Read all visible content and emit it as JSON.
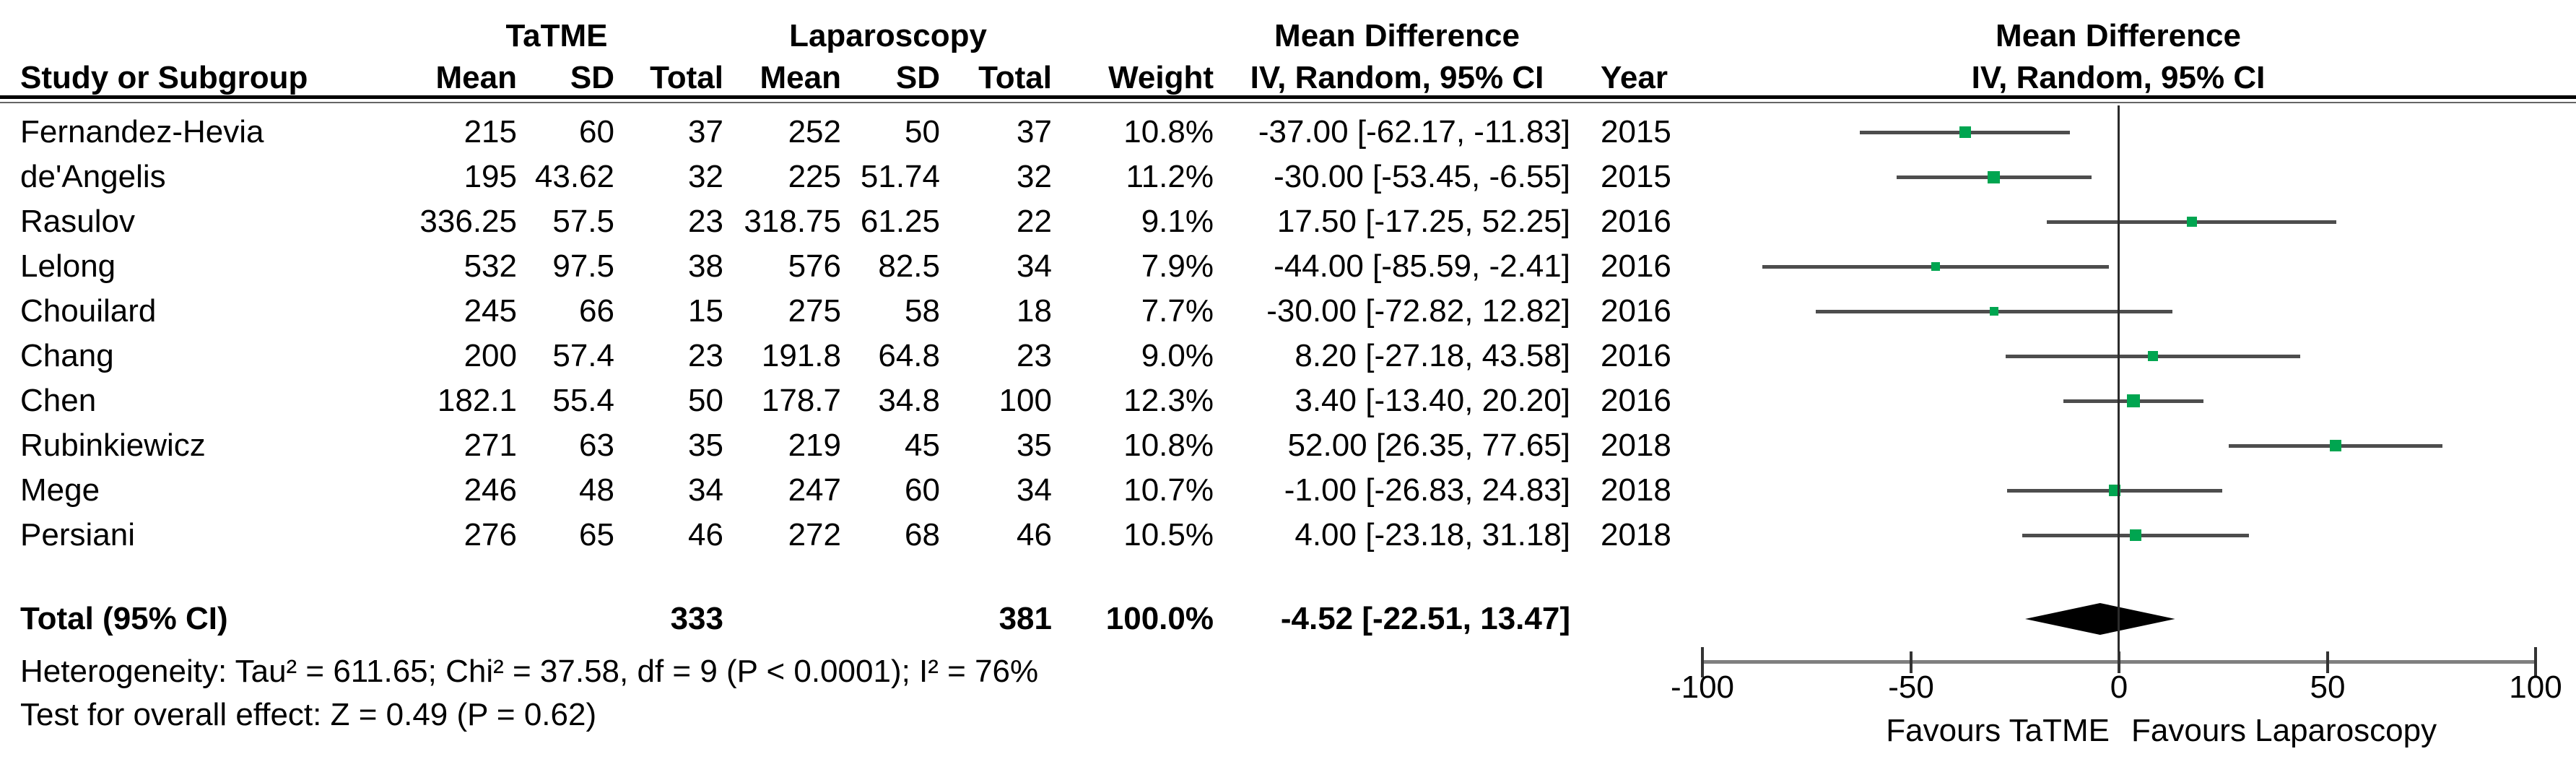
{
  "chart_data": {
    "type": "forest",
    "plot_header": {
      "line1": "Mean Difference",
      "line2": "IV, Random, 95% CI"
    },
    "groups": {
      "experimental": "TaTME",
      "control": "Laparoscopy",
      "effect": "Mean Difference"
    },
    "columns": {
      "study": "Study or Subgroup",
      "mean": "Mean",
      "sd": "SD",
      "total": "Total",
      "weight": "Weight",
      "effect_ci": "IV, Random, 95% CI",
      "year": "Year"
    },
    "studies": [
      {
        "name": "Fernandez-Hevia",
        "mean1": "215",
        "sd1": "60",
        "total1": "37",
        "mean2": "252",
        "sd2": "50",
        "total2": "37",
        "weight": "10.8%",
        "ci": "-37.00 [-62.17, -11.83]",
        "year": "2015",
        "est": -37.0,
        "lo": -62.17,
        "hi": -11.83,
        "weight_pct": 10.8
      },
      {
        "name": "de'Angelis",
        "mean1": "195",
        "sd1": "43.62",
        "total1": "32",
        "mean2": "225",
        "sd2": "51.74",
        "total2": "32",
        "weight": "11.2%",
        "ci": "-30.00 [-53.45, -6.55]",
        "year": "2015",
        "est": -30.0,
        "lo": -53.45,
        "hi": -6.55,
        "weight_pct": 11.2
      },
      {
        "name": "Rasulov",
        "mean1": "336.25",
        "sd1": "57.5",
        "total1": "23",
        "mean2": "318.75",
        "sd2": "61.25",
        "total2": "22",
        "weight": "9.1%",
        "ci": "17.50 [-17.25, 52.25]",
        "year": "2016",
        "est": 17.5,
        "lo": -17.25,
        "hi": 52.25,
        "weight_pct": 9.1
      },
      {
        "name": "Lelong",
        "mean1": "532",
        "sd1": "97.5",
        "total1": "38",
        "mean2": "576",
        "sd2": "82.5",
        "total2": "34",
        "weight": "7.9%",
        "ci": "-44.00 [-85.59, -2.41]",
        "year": "2016",
        "est": -44.0,
        "lo": -85.59,
        "hi": -2.41,
        "weight_pct": 7.9
      },
      {
        "name": "Chouilard",
        "mean1": "245",
        "sd1": "66",
        "total1": "15",
        "mean2": "275",
        "sd2": "58",
        "total2": "18",
        "weight": "7.7%",
        "ci": "-30.00 [-72.82, 12.82]",
        "year": "2016",
        "est": -30.0,
        "lo": -72.82,
        "hi": 12.82,
        "weight_pct": 7.7
      },
      {
        "name": "Chang",
        "mean1": "200",
        "sd1": "57.4",
        "total1": "23",
        "mean2": "191.8",
        "sd2": "64.8",
        "total2": "23",
        "weight": "9.0%",
        "ci": "8.20 [-27.18, 43.58]",
        "year": "2016",
        "est": 8.2,
        "lo": -27.18,
        "hi": 43.58,
        "weight_pct": 9.0
      },
      {
        "name": "Chen",
        "mean1": "182.1",
        "sd1": "55.4",
        "total1": "50",
        "mean2": "178.7",
        "sd2": "34.8",
        "total2": "100",
        "weight": "12.3%",
        "ci": "3.40 [-13.40, 20.20]",
        "year": "2016",
        "est": 3.4,
        "lo": -13.4,
        "hi": 20.2,
        "weight_pct": 12.3
      },
      {
        "name": "Rubinkiewicz",
        "mean1": "271",
        "sd1": "63",
        "total1": "35",
        "mean2": "219",
        "sd2": "45",
        "total2": "35",
        "weight": "10.8%",
        "ci": "52.00 [26.35, 77.65]",
        "year": "2018",
        "est": 52.0,
        "lo": 26.35,
        "hi": 77.65,
        "weight_pct": 10.8
      },
      {
        "name": "Mege",
        "mean1": "246",
        "sd1": "48",
        "total1": "34",
        "mean2": "247",
        "sd2": "60",
        "total2": "34",
        "weight": "10.7%",
        "ci": "-1.00 [-26.83, 24.83]",
        "year": "2018",
        "est": -1.0,
        "lo": -26.83,
        "hi": 24.83,
        "weight_pct": 10.7
      },
      {
        "name": "Persiani",
        "mean1": "276",
        "sd1": "65",
        "total1": "46",
        "mean2": "272",
        "sd2": "68",
        "total2": "46",
        "weight": "10.5%",
        "ci": "4.00 [-23.18, 31.18]",
        "year": "2018",
        "est": 4.0,
        "lo": -23.18,
        "hi": 31.18,
        "weight_pct": 10.5
      }
    ],
    "total": {
      "label": "Total (95% CI)",
      "total1": "333",
      "total2": "381",
      "weight": "100.0%",
      "ci": "-4.52 [-22.51, 13.47]",
      "est": -4.52,
      "lo": -22.51,
      "hi": 13.47
    },
    "heterogeneity": "Heterogeneity: Tau² = 611.65; Chi² = 37.58, df = 9 (P < 0.0001); I² = 76%",
    "overall_effect": "Test for overall effect: Z = 0.49 (P = 0.62)",
    "axis": {
      "min": -100,
      "max": 100,
      "ticks": [
        "-100",
        "-50",
        "0",
        "50",
        "100"
      ],
      "favours_left": "Favours TaTME",
      "favours_right": "Favours Laparoscopy"
    },
    "colors": {
      "marker": "#00a550",
      "diamond": "#000000",
      "ci_line": "#4d4d4d",
      "axis_line": "#7f7f7f",
      "tick": "#333333",
      "text": "#000000"
    }
  }
}
